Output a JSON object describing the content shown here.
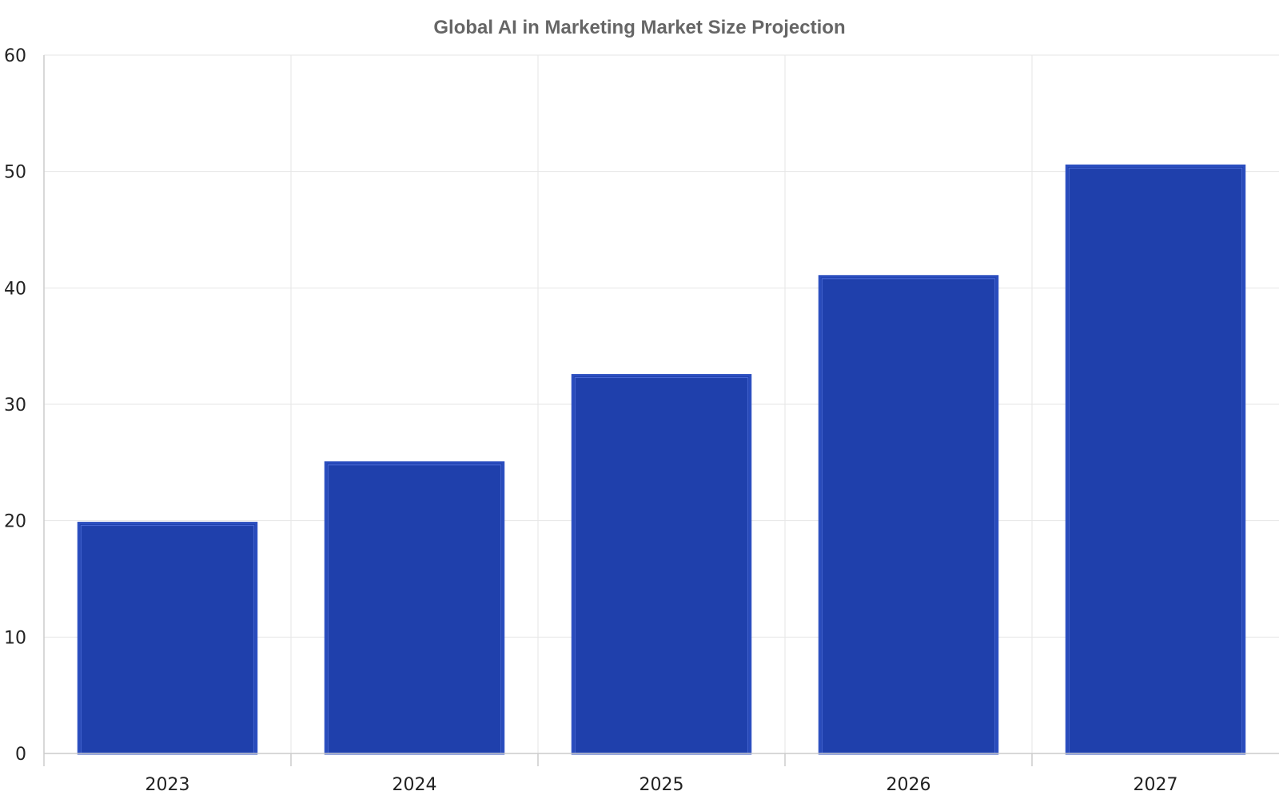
{
  "chart_data": {
    "type": "bar",
    "title": "Global AI in Marketing Market Size Projection",
    "xlabel": "",
    "ylabel": "",
    "categories": [
      "2023",
      "2024",
      "2025",
      "2026",
      "2027"
    ],
    "values": [
      19.8,
      25.0,
      32.5,
      41.0,
      50.5
    ],
    "ylim": [
      0,
      60
    ],
    "yticks": [
      0,
      10,
      20,
      30,
      40,
      50,
      60
    ],
    "grid": true,
    "legend": "none",
    "bar_color": "#1f40ac"
  }
}
